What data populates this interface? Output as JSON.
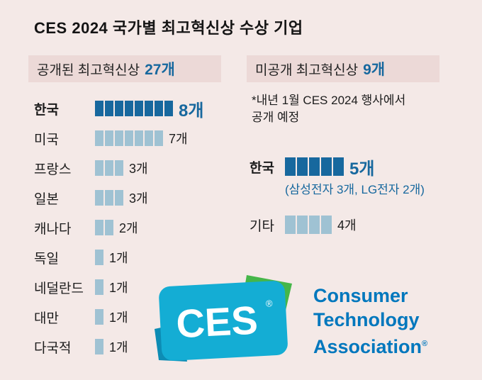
{
  "title": "CES 2024 국가별 최고혁신상 수상 기업",
  "colors": {
    "background": "#f4e9e7",
    "header_band": "#ecd9d7",
    "bar_dark": "#17689e",
    "bar_light": "#9fc2d3",
    "accent_blue": "#17689e",
    "cta_blue": "#0077bd",
    "logo_teal": "#14add4",
    "logo_green": "#45b649",
    "logo_dark_teal": "#0d8cb4"
  },
  "left_panel": {
    "header": {
      "label": "공개된 최고혁신상",
      "count": "27개"
    },
    "rows": [
      {
        "key": "korea",
        "label": "한국",
        "count": 8,
        "value": "8개",
        "emphasis": true
      },
      {
        "key": "usa",
        "label": "미국",
        "count": 7,
        "value": "7개",
        "emphasis": false
      },
      {
        "key": "france",
        "label": "프랑스",
        "count": 3,
        "value": "3개",
        "emphasis": false
      },
      {
        "key": "japan",
        "label": "일본",
        "count": 3,
        "value": "3개",
        "emphasis": false
      },
      {
        "key": "canada",
        "label": "캐나다",
        "count": 2,
        "value": "2개",
        "emphasis": false
      },
      {
        "key": "germany",
        "label": "독일",
        "count": 1,
        "value": "1개",
        "emphasis": false
      },
      {
        "key": "netherlands",
        "label": "네덜란드",
        "count": 1,
        "value": "1개",
        "emphasis": false
      },
      {
        "key": "taiwan",
        "label": "대만",
        "count": 1,
        "value": "1개",
        "emphasis": false
      },
      {
        "key": "multinational",
        "label": "다국적",
        "count": 1,
        "value": "1개",
        "emphasis": false
      }
    ]
  },
  "right_panel": {
    "header": {
      "label": "미공개 최고혁신상",
      "count": "9개"
    },
    "note_lines": [
      "*내년 1월 CES 2024 행사에서",
      " 공개 예정"
    ],
    "rows": [
      {
        "key": "korea",
        "label": "한국",
        "count": 5,
        "value": "5개",
        "emphasis": true,
        "subnote": "(삼성전자 3개, LG전자 2개)"
      },
      {
        "key": "others",
        "label": "기타",
        "count": 4,
        "value": "4개",
        "emphasis": false
      }
    ]
  },
  "logo": {
    "ces_text": "CES",
    "registered": "®",
    "cta_lines": [
      "Consumer",
      "Technology",
      "Association"
    ]
  },
  "chart_data": [
    {
      "type": "bar",
      "title": "공개된 최고혁신상 27개",
      "categories": [
        "한국",
        "미국",
        "프랑스",
        "일본",
        "캐나다",
        "독일",
        "네덜란드",
        "대만",
        "다국적"
      ],
      "values": [
        8,
        7,
        3,
        3,
        2,
        1,
        1,
        1,
        1
      ],
      "unit": "개",
      "total": 27,
      "highlight_category": "한국",
      "orientation": "horizontal",
      "legend": false
    },
    {
      "type": "bar",
      "title": "미공개 최고혁신상 9개",
      "categories": [
        "한국",
        "기타"
      ],
      "values": [
        5,
        4
      ],
      "unit": "개",
      "total": 9,
      "highlight_category": "한국",
      "orientation": "horizontal",
      "legend": false,
      "annotations": [
        "(삼성전자 3개, LG전자 2개)",
        "*내년 1월 CES 2024 행사에서 공개 예정"
      ]
    }
  ]
}
